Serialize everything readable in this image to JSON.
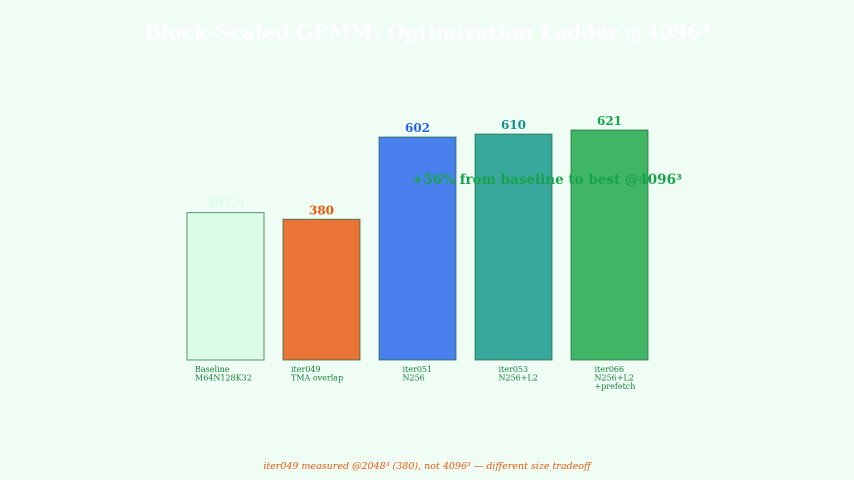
{
  "chart_data": {
    "type": "bar",
    "title": "Block-Scaled GEMM: Optimization Ladder @4096³",
    "categories": [
      [
        "Baseline",
        "M64N128K32"
      ],
      [
        "iter049",
        "TMA overlap"
      ],
      [
        "iter051",
        "N256"
      ],
      [
        "iter053",
        "N256+L2"
      ],
      [
        "iter066",
        "N256+L2",
        "+prefetch"
      ]
    ],
    "values": [
      397.9,
      380,
      602,
      610,
      621
    ],
    "value_labels": [
      "397.9",
      "380",
      "602",
      "610",
      "621"
    ],
    "bar_colors": [
      "#dcfce7",
      "#ea7437",
      "#4a80ee",
      "#38a89d",
      "#40b565"
    ],
    "label_colors": [
      "#dcfce7",
      "#ea580c",
      "#2563eb",
      "#0d9488",
      "#16a34a"
    ],
    "ylim": [
      0,
      700
    ],
    "xlabel": "",
    "ylabel": "",
    "grid": false,
    "annotation": "+56% from baseline to best @4096³",
    "footnote": "iter049 measured @2048³ (380), not 4096³ — different size tradeoff"
  },
  "colors": {
    "background": "#f0fdf4",
    "title": "#ffffff",
    "tick_label": "#15803d",
    "annotation": "#16a34a",
    "footnote": "#ea580c",
    "bar_edge": "#166534"
  }
}
